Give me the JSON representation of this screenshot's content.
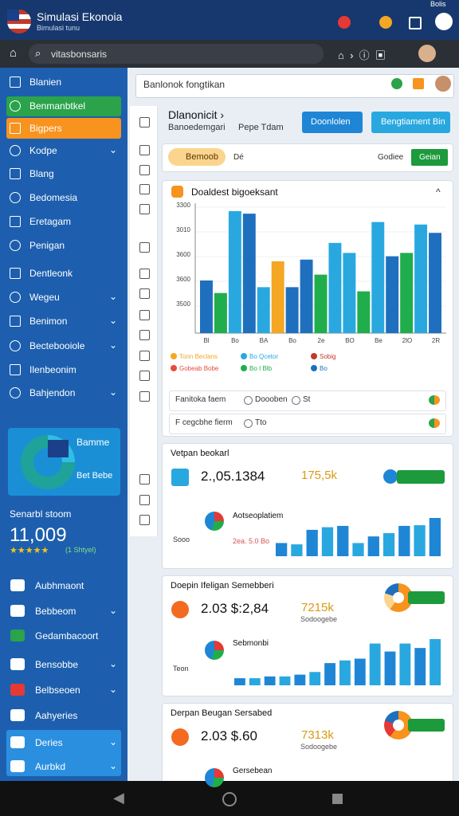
{
  "status_bar": {
    "title": "Simulasi Ekonoia",
    "subtitle": "Bimulasi tunu",
    "right": "Bolis"
  },
  "address_bar": {
    "url": "vitasbonsaris"
  },
  "sidebar": {
    "items": [
      "Blanien",
      "Benmanbtkel",
      "Bigpers",
      "Kodpe",
      "Blang",
      "Bedomesia",
      "Eretagam",
      "Penigan",
      "Dentleonk",
      "Wegeu",
      "Benimon",
      "Bectebooiole",
      "Ilenbeonim",
      "Bahjendon"
    ],
    "promo": {
      "title": "Bamme",
      "subtitle": "Bet Bebe"
    },
    "score": {
      "label": "Senarbl stoom",
      "value": "11,009",
      "rating": "(1 Shtyel)"
    },
    "bottom_items": [
      "Aubhmaont",
      "Bebbeom",
      "Gedambacoort",
      "Bensobbe",
      "Belbseoen",
      "Aahyeries",
      "Deries",
      "Aurbkd"
    ]
  },
  "search": {
    "placeholder": "Banlonok fongtikan"
  },
  "header": {
    "title": "Dlanonicit ›",
    "tab1": "Banoedemgari",
    "tab2": "Pepe Tdam",
    "button1": "Doonlolen",
    "button2": "Bengtiament Bin"
  },
  "filter": {
    "chip": "Bemoob",
    "field": "Dé",
    "option": "Godiee",
    "button": "Geian"
  },
  "chart_card": {
    "title": "Doaldest bigoeksant",
    "y_labels": [
      "3300",
      "3010",
      "3600",
      "3600",
      "3500"
    ],
    "x_labels": [
      "Bl",
      "Bo",
      "BA",
      "Bo",
      "2e",
      "BO",
      "Be",
      "2lO",
      "2R"
    ],
    "bars": [
      {
        "value": 63,
        "color": "#1f6fbf"
      },
      {
        "value": 48,
        "color": "#1fae4b"
      },
      {
        "value": 146,
        "color": "#29a8e0"
      },
      {
        "value": 143,
        "color": "#1f6fbf"
      },
      {
        "value": 55,
        "color": "#29a8e0"
      },
      {
        "value": 86,
        "color": "#f5a623"
      },
      {
        "value": 55,
        "color": "#1f6fbf"
      },
      {
        "value": 88,
        "color": "#1f6fbf"
      },
      {
        "value": 70,
        "color": "#1fae4b"
      },
      {
        "value": 108,
        "color": "#29a8e0"
      },
      {
        "value": 96,
        "color": "#29a8e0"
      },
      {
        "value": 50,
        "color": "#1fae4b"
      },
      {
        "value": 133,
        "color": "#29a8e0"
      },
      {
        "value": 92,
        "color": "#1f6fbf"
      },
      {
        "value": 96,
        "color": "#1fae4b"
      },
      {
        "value": 130,
        "color": "#29a8e0"
      },
      {
        "value": 120,
        "color": "#1f6fbf"
      }
    ],
    "legend": [
      {
        "label": "Tonn Beclans",
        "color": "#f5a623"
      },
      {
        "label": "Bo Qcetor",
        "color": "#29a8e0"
      },
      {
        "label": "Sobig",
        "color": "#c0392b"
      },
      {
        "label": "Gobeab Bobe",
        "color": "#e74c3c"
      },
      {
        "label": "Bo I Blb",
        "color": "#1fae4b"
      },
      {
        "label": "Bo",
        "color": "#1f6fbf"
      }
    ],
    "rows": [
      "Fanitoka faem",
      "F cegcbhe fierm"
    ],
    "options": [
      "Doooben",
      "St",
      "Tto"
    ]
  },
  "cards": [
    {
      "title": "Vetpan beokarl",
      "value": "2.,05.1384",
      "stat": "175,5k",
      "sub_title": "Aotseoplatiem",
      "sub_value": "2ea. 5.0 Bo",
      "label": "Sooo",
      "bars": [
        20,
        18,
        40,
        44,
        46,
        20,
        30,
        35,
        46,
        47,
        58
      ]
    },
    {
      "title": "Doepin Ifeligan Semebberi",
      "value": "2.03 $:2,84",
      "stat": "7215k",
      "stat_note": "Sodoogebe",
      "sub_title": "Sebmonbi",
      "label": "Teon",
      "bars": [
        8,
        8,
        10,
        10,
        12,
        15,
        25,
        28,
        30,
        47,
        38,
        47,
        42,
        52
      ]
    },
    {
      "title": "Derpan Beugan Sersabed",
      "value": "2.03 $.60",
      "stat": "7313k",
      "stat_note": "Sodoogebe",
      "sub_title": "Gersebean",
      "label": "",
      "bars": []
    }
  ]
}
